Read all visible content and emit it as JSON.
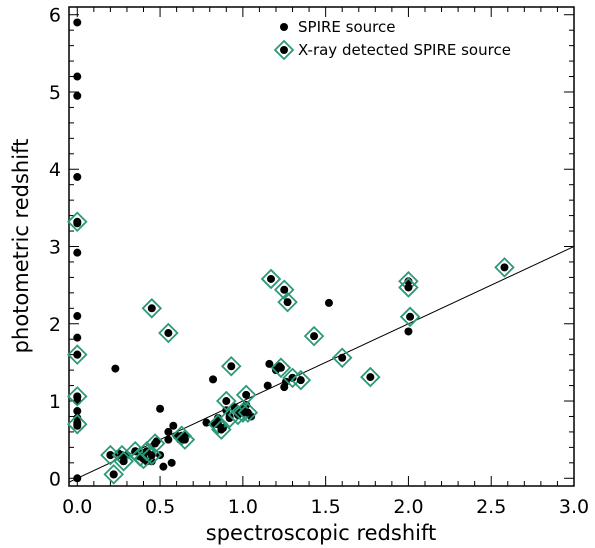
{
  "chart_data": {
    "type": "scatter",
    "title": "",
    "xlabel": "spectroscopic redshift",
    "ylabel": "photometric redshift",
    "xlim": [
      -0.05,
      3.0
    ],
    "ylim": [
      -0.1,
      6.1
    ],
    "xticks": [
      0.0,
      0.5,
      1.0,
      1.5,
      2.0,
      2.5,
      3.0
    ],
    "xtick_labels": [
      "0.0",
      "0.5",
      "1.0",
      "1.5",
      "2.0",
      "2.5",
      "3.0"
    ],
    "yticks": [
      0,
      1,
      2,
      3,
      4,
      5,
      6
    ],
    "ytick_labels": [
      "0",
      "1",
      "2",
      "3",
      "4",
      "5",
      "6"
    ],
    "grid": false,
    "legend_position": "top-right",
    "reference_line": {
      "from": [
        -0.05,
        -0.05
      ],
      "to": [
        3.0,
        3.0
      ]
    },
    "colors": {
      "sources": "#000000",
      "xray_marker": "#2a9a7a",
      "line": "#000000"
    },
    "series": [
      {
        "name": "SPIRE source",
        "marker": "filled-circle",
        "x": [
          0.0,
          0.0,
          0.0,
          0.0,
          0.0,
          0.0,
          0.0,
          0.0,
          0.0,
          0.0,
          0.0,
          0.0,
          0.0,
          0.0,
          0.0,
          0.0,
          0.2,
          0.22,
          0.23,
          0.25,
          0.28,
          0.3,
          0.35,
          0.38,
          0.4,
          0.42,
          0.45,
          0.48,
          0.5,
          0.5,
          0.52,
          0.55,
          0.55,
          0.57,
          0.58,
          0.6,
          0.62,
          0.65,
          0.78,
          0.82,
          0.83,
          0.85,
          0.88,
          0.9,
          0.92,
          0.95,
          0.97,
          1.0,
          1.02,
          1.05,
          1.15,
          1.16,
          1.2,
          1.22,
          1.25,
          1.26,
          1.3,
          1.52,
          2.0
        ],
        "y": [
          5.9,
          5.2,
          4.95,
          3.9,
          3.3,
          2.92,
          2.1,
          1.82,
          1.6,
          1.05,
          1.0,
          0.87,
          0.78,
          0.72,
          0.68,
          0.0,
          0.3,
          0.05,
          1.42,
          0.32,
          0.28,
          0.3,
          0.35,
          0.32,
          0.3,
          0.22,
          0.22,
          0.48,
          0.9,
          0.3,
          0.15,
          0.5,
          0.6,
          0.2,
          0.68,
          0.55,
          0.5,
          0.55,
          0.72,
          1.28,
          0.7,
          0.78,
          0.65,
          0.88,
          0.8,
          0.92,
          0.85,
          0.9,
          0.95,
          0.8,
          1.2,
          1.48,
          1.4,
          1.45,
          1.18,
          1.25,
          1.3,
          2.27,
          1.9
        ]
      },
      {
        "name": "X-ray detected SPIRE source",
        "marker": "filled-circle-in-diamond",
        "x": [
          0.0,
          0.0,
          0.0,
          0.0,
          0.2,
          0.22,
          0.27,
          0.28,
          0.35,
          0.38,
          0.4,
          0.42,
          0.45,
          0.45,
          0.47,
          0.55,
          0.63,
          0.65,
          0.85,
          0.87,
          0.9,
          0.92,
          0.93,
          0.97,
          1.0,
          1.02,
          1.03,
          1.17,
          1.23,
          1.25,
          1.27,
          1.3,
          1.35,
          1.43,
          1.6,
          1.77,
          2.0,
          2.0,
          2.01,
          2.58
        ],
        "y": [
          3.32,
          1.6,
          1.06,
          0.7,
          0.3,
          0.05,
          0.3,
          0.22,
          0.35,
          0.28,
          0.25,
          0.35,
          2.2,
          0.3,
          0.45,
          1.88,
          0.55,
          0.5,
          0.7,
          0.63,
          1.0,
          0.78,
          1.45,
          0.82,
          0.85,
          1.08,
          0.85,
          2.58,
          1.43,
          2.44,
          2.28,
          1.3,
          1.27,
          1.84,
          1.56,
          1.31,
          2.55,
          2.47,
          2.09,
          2.73
        ]
      }
    ],
    "legend": [
      {
        "label": "SPIRE source",
        "marker": "filled-circle"
      },
      {
        "label": "X-ray detected SPIRE source",
        "marker": "filled-circle-in-diamond"
      }
    ]
  }
}
